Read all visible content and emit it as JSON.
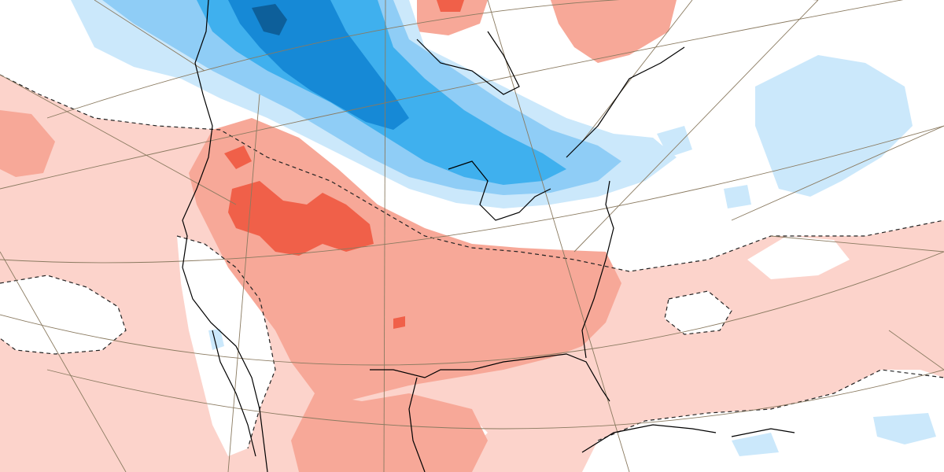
{
  "map": {
    "kind": "temperature-anomaly",
    "projection": "polar-stereographic",
    "region": "North America",
    "gridlines": true,
    "contour_style": "dashed-zero-line",
    "colors": {
      "background": "#ffffff",
      "ocean_neutral": "#ffffff",
      "warm_1": "#fcd3cb",
      "warm_2": "#f7a898",
      "warm_3": "#f06049",
      "cool_1": "#cbe8fb",
      "cool_2": "#8fcdf6",
      "cool_3": "#3fb0ee",
      "cool_4": "#1689d6",
      "cool_5": "#0d5f9a",
      "coastline": "#000000",
      "graticule": "#8a7a60",
      "contour": "#222222"
    }
  }
}
